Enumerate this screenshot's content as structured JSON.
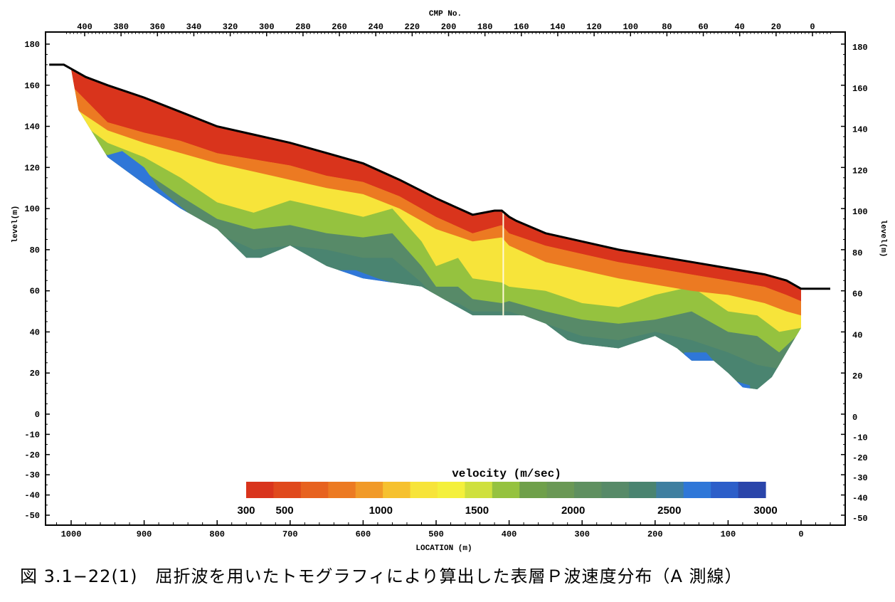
{
  "caption": "図 3.1−22(1)　屈折波を用いたトモグラフィにより算出した表層Ｐ波速度分布（A 測線）",
  "chart_data": {
    "type": "heatmap",
    "x_bottom": {
      "label": "LOCATION (m)",
      "range": [
        1040,
        -60
      ],
      "ticks": [
        1000,
        900,
        800,
        700,
        600,
        500,
        400,
        300,
        200,
        100,
        0
      ]
    },
    "x_top": {
      "label": "CMP No.",
      "ticks": [
        400,
        380,
        360,
        340,
        320,
        300,
        280,
        260,
        240,
        220,
        200,
        180,
        160,
        140,
        120,
        100,
        80,
        60,
        40,
        20,
        0
      ]
    },
    "y": {
      "label": "level(m)",
      "range": [
        -55,
        185
      ],
      "ticks": [
        180,
        160,
        140,
        120,
        100,
        80,
        60,
        40,
        20,
        0,
        -10,
        -20,
        -30,
        -40,
        -50
      ]
    },
    "colorbar": {
      "label": "velocity (m/sec)",
      "range": [
        300,
        3000
      ],
      "tick_labels": [
        300,
        500,
        1000,
        1500,
        2000,
        2500,
        3000
      ],
      "colors": [
        "#d9341c",
        "#e0491c",
        "#e7621f",
        "#ec7a22",
        "#f19a28",
        "#f6c12f",
        "#f7e43a",
        "#f4f03c",
        "#cfe03e",
        "#95c23f",
        "#6fa04a",
        "#6a9855",
        "#5f9060",
        "#578a68",
        "#4a8470",
        "#3f7fa0",
        "#2f77d8",
        "#2c5ec9",
        "#2a45aa"
      ]
    },
    "surface_profile": {
      "x": [
        1030,
        1010,
        1000,
        980,
        950,
        900,
        850,
        800,
        750,
        700,
        650,
        600,
        550,
        500,
        450,
        420,
        410,
        400,
        390,
        350,
        300,
        250,
        200,
        150,
        100,
        50,
        20,
        0,
        -20,
        -40
      ],
      "y": [
        170,
        170,
        168,
        164,
        160,
        154,
        147,
        140,
        136,
        132,
        127,
        122,
        114,
        105,
        97,
        99,
        99,
        96,
        94,
        88,
        84,
        80,
        77,
        74,
        71,
        68,
        65,
        61,
        61,
        61
      ]
    },
    "bottom_profile": {
      "x": [
        1000,
        990,
        950,
        900,
        850,
        800,
        760,
        740,
        700,
        650,
        600,
        560,
        520,
        500,
        480,
        450,
        420,
        400,
        380,
        350,
        320,
        300,
        250,
        200,
        170,
        150,
        120,
        100,
        80,
        60,
        40,
        20,
        0
      ],
      "y": [
        168,
        148,
        125,
        112,
        100,
        90,
        76,
        76,
        82,
        72,
        66,
        64,
        62,
        58,
        54,
        48,
        48,
        48,
        48,
        44,
        36,
        34,
        32,
        38,
        32,
        26,
        26,
        20,
        13,
        12,
        18,
        30,
        42
      ]
    },
    "layers": [
      {
        "velocity": 400,
        "x": [
          1000,
          950,
          900,
          850,
          800,
          750,
          700,
          650,
          600,
          550,
          500,
          450,
          410,
          400,
          350,
          300,
          250,
          200,
          150,
          100,
          50,
          20,
          0
        ],
        "y": [
          160,
          142,
          137,
          133,
          127,
          124,
          121,
          116,
          113,
          106,
          96,
          88,
          92,
          88,
          82,
          78,
          74,
          71,
          68,
          65,
          62,
          58,
          55
        ]
      },
      {
        "velocity": 800,
        "x": [
          1000,
          950,
          900,
          850,
          800,
          750,
          700,
          650,
          600,
          550,
          500,
          450,
          410,
          400,
          350,
          300,
          250,
          200,
          150,
          100,
          50,
          20,
          0
        ],
        "y": [
          150,
          138,
          132,
          127,
          122,
          118,
          114,
          110,
          107,
          100,
          90,
          84,
          86,
          82,
          74,
          70,
          66,
          63,
          60,
          58,
          54,
          50,
          48
        ]
      },
      {
        "velocity": 1200,
        "x": [
          1000,
          950,
          900,
          850,
          800,
          750,
          700,
          650,
          600,
          560,
          520,
          500,
          470,
          450,
          410,
          400,
          350,
          300,
          250,
          200,
          150,
          100,
          60,
          30,
          0
        ],
        "y": [
          145,
          132,
          125,
          115,
          103,
          98,
          104,
          100,
          96,
          100,
          84,
          72,
          76,
          66,
          64,
          62,
          60,
          54,
          52,
          58,
          62,
          50,
          48,
          40,
          42
        ]
      },
      {
        "velocity": 1700,
        "x": [
          1000,
          950,
          900,
          850,
          800,
          750,
          700,
          650,
          600,
          560,
          520,
          500,
          470,
          450,
          410,
          400,
          350,
          300,
          250,
          200,
          150,
          100,
          60,
          30,
          0
        ],
        "y": [
          138,
          126,
          118,
          106,
          95,
          90,
          92,
          88,
          86,
          88,
          72,
          62,
          62,
          56,
          54,
          55,
          50,
          46,
          44,
          46,
          50,
          40,
          38,
          30,
          40
        ]
      },
      {
        "velocity": 2200,
        "x": [
          1000,
          950,
          900,
          850,
          800,
          750,
          700,
          650,
          600,
          560,
          520,
          500,
          470,
          450,
          410,
          400,
          350,
          300,
          250,
          200,
          150,
          100,
          60,
          30,
          0
        ],
        "y": [
          130,
          118,
          110,
          98,
          88,
          80,
          82,
          80,
          76,
          76,
          64,
          56,
          54,
          50,
          50,
          50,
          44,
          38,
          36,
          40,
          36,
          30,
          24,
          22,
          36
        ]
      },
      {
        "velocity": 2700,
        "x": [
          960,
          930,
          900,
          880,
          860,
          820,
          780,
          760,
          740
        ],
        "y": [
          125,
          128,
          120,
          110,
          104,
          92,
          80,
          76,
          76
        ]
      },
      {
        "velocity": 2700,
        "x": [
          640,
          610,
          580,
          560
        ],
        "y": [
          70,
          70,
          66,
          64
        ]
      },
      {
        "velocity": 2700,
        "x": [
          160,
          130,
          110,
          90,
          70
        ],
        "y": [
          30,
          30,
          22,
          16,
          14
        ]
      }
    ],
    "annotations": [
      {
        "type": "vertical_line",
        "x": 408,
        "y_range": [
          48,
          99
        ],
        "color": "#fff9d8"
      }
    ]
  }
}
